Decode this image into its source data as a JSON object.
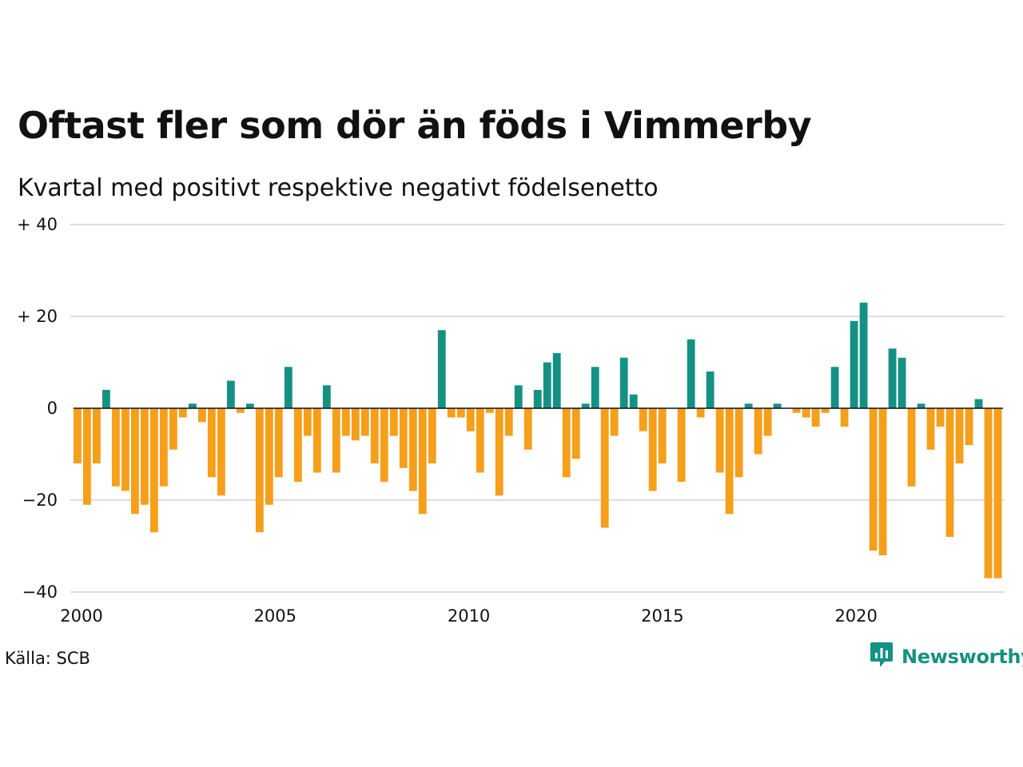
{
  "title": "Oftast fler som dör än föds i Vimmerby",
  "subtitle": "Kvartal med positivt respektive negativt födelsenetto",
  "source": "Källa: SCB",
  "brand": {
    "name": "Newsworthy",
    "icon": "newsworthy-logo-icon",
    "color": "#159183"
  },
  "colors": {
    "positive": "#159183",
    "negative": "#f59f1a",
    "grid": "#dddddd",
    "zero_line": "#111111"
  },
  "chart_data": {
    "type": "bar",
    "title": "Oftast fler som dör än föds i Vimmerby",
    "subtitle": "Kvartal med positivt respektive negativt födelsenetto",
    "xlabel": "",
    "ylabel": "",
    "xlim": [
      2000,
      2024
    ],
    "ylim": [
      -40,
      40
    ],
    "grid": true,
    "legend": "none",
    "y_ticks": [
      {
        "value": 40,
        "label": "+ 40"
      },
      {
        "value": 20,
        "label": "+ 20"
      },
      {
        "value": 0,
        "label": "0"
      },
      {
        "value": -20,
        "label": "−20"
      },
      {
        "value": -40,
        "label": "−40"
      }
    ],
    "x_ticks": [
      {
        "value": 2000,
        "label": "2000"
      },
      {
        "value": 2005,
        "label": "2005"
      },
      {
        "value": 2010,
        "label": "2010"
      },
      {
        "value": 2015,
        "label": "2015"
      },
      {
        "value": 2020,
        "label": "2020"
      }
    ],
    "quarters": [
      "2000K1",
      "2000K2",
      "2000K3",
      "2000K4",
      "2001K1",
      "2001K2",
      "2001K3",
      "2001K4",
      "2002K1",
      "2002K2",
      "2002K3",
      "2002K4",
      "2003K1",
      "2003K2",
      "2003K3",
      "2003K4",
      "2004K1",
      "2004K2",
      "2004K3",
      "2004K4",
      "2005K1",
      "2005K2",
      "2005K3",
      "2005K4",
      "2006K1",
      "2006K2",
      "2006K3",
      "2006K4",
      "2007K1",
      "2007K2",
      "2007K3",
      "2007K4",
      "2008K1",
      "2008K2",
      "2008K3",
      "2008K4",
      "2009K1",
      "2009K2",
      "2009K3",
      "2009K4",
      "2010K1",
      "2010K2",
      "2010K3",
      "2010K4",
      "2011K1",
      "2011K2",
      "2011K3",
      "2011K4",
      "2012K1",
      "2012K2",
      "2012K3",
      "2012K4",
      "2013K1",
      "2013K2",
      "2013K3",
      "2013K4",
      "2014K1",
      "2014K2",
      "2014K3",
      "2014K4",
      "2015K1",
      "2015K2",
      "2015K3",
      "2015K4",
      "2016K1",
      "2016K2",
      "2016K3",
      "2016K4",
      "2017K1",
      "2017K2",
      "2017K3",
      "2017K4",
      "2018K1",
      "2018K2",
      "2018K3",
      "2018K4",
      "2019K1",
      "2019K2",
      "2019K3",
      "2019K4",
      "2020K1",
      "2020K2",
      "2020K3",
      "2020K4",
      "2021K1",
      "2021K2",
      "2021K3",
      "2021K4",
      "2022K1",
      "2022K2",
      "2022K3",
      "2022K4",
      "2023K1",
      "2023K2",
      "2023K3",
      "2023K4",
      "2024K1"
    ],
    "values": [
      -12,
      -21,
      -12,
      4,
      -17,
      -18,
      -23,
      -21,
      -27,
      -17,
      -9,
      -2,
      1,
      -3,
      -15,
      -19,
      6,
      -1,
      1,
      -27,
      -21,
      -15,
      9,
      -16,
      -6,
      -14,
      5,
      -14,
      -6,
      -7,
      -6,
      -12,
      -16,
      -6,
      -13,
      -18,
      -23,
      -12,
      17,
      -2,
      -2,
      -5,
      -14,
      -1,
      -19,
      -6,
      5,
      -9,
      4,
      10,
      12,
      -15,
      -11,
      1,
      9,
      -26,
      -6,
      11,
      3,
      -5,
      -18,
      -12,
      0,
      -16,
      15,
      -2,
      8,
      -14,
      -23,
      -15,
      1,
      -10,
      -6,
      1,
      0,
      -1,
      -2,
      -4,
      -1,
      9,
      -4,
      19,
      23,
      -31,
      -32,
      13,
      11,
      -17,
      1,
      -9,
      -4,
      -28,
      -12,
      -8,
      2,
      -37,
      -37
    ]
  }
}
